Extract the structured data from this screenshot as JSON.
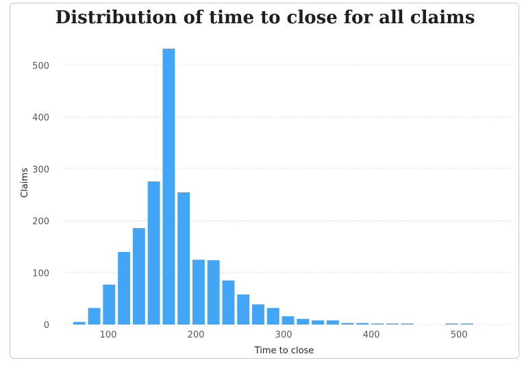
{
  "chart_data": {
    "type": "bar",
    "title": "Distribution of time to close for all claims",
    "xlabel": "Time to close",
    "ylabel": "Claims",
    "xlim": [
      50,
      560
    ],
    "ylim": [
      0,
      540
    ],
    "x_ticks": [
      100,
      200,
      300,
      400,
      500
    ],
    "y_ticks": [
      0,
      100,
      200,
      300,
      400,
      500
    ],
    "grid": true,
    "bar_width": 14,
    "color": "#42a5f5",
    "bins": [
      {
        "x": 67,
        "value": 5
      },
      {
        "x": 84,
        "value": 32
      },
      {
        "x": 101,
        "value": 77
      },
      {
        "x": 118,
        "value": 140
      },
      {
        "x": 135,
        "value": 186
      },
      {
        "x": 152,
        "value": 276
      },
      {
        "x": 169,
        "value": 532
      },
      {
        "x": 186,
        "value": 255
      },
      {
        "x": 203,
        "value": 125
      },
      {
        "x": 220,
        "value": 124
      },
      {
        "x": 237,
        "value": 85
      },
      {
        "x": 254,
        "value": 58
      },
      {
        "x": 271,
        "value": 39
      },
      {
        "x": 288,
        "value": 32
      },
      {
        "x": 305,
        "value": 16
      },
      {
        "x": 322,
        "value": 11
      },
      {
        "x": 339,
        "value": 8
      },
      {
        "x": 356,
        "value": 8
      },
      {
        "x": 373,
        "value": 3
      },
      {
        "x": 390,
        "value": 3
      },
      {
        "x": 407,
        "value": 2
      },
      {
        "x": 424,
        "value": 2
      },
      {
        "x": 441,
        "value": 2
      },
      {
        "x": 492,
        "value": 2
      },
      {
        "x": 509,
        "value": 2
      }
    ]
  }
}
